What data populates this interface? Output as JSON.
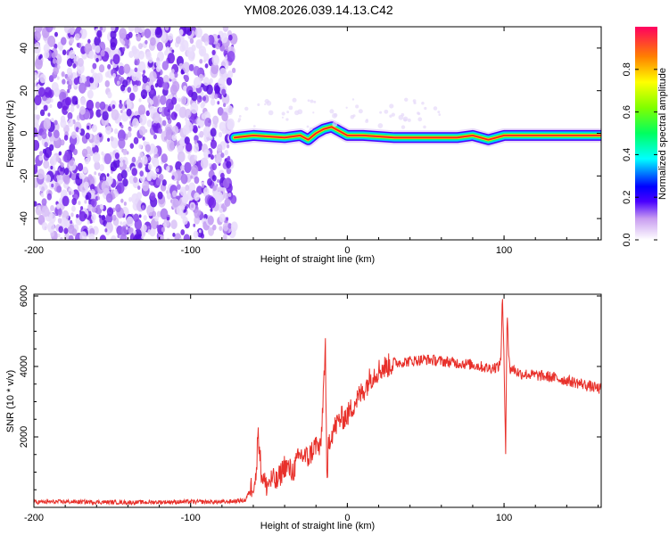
{
  "title": "YM08.2026.039.14.13.C42",
  "chart_data": [
    {
      "type": "heatmap",
      "xlabel": "Height of straight line (km)",
      "ylabel": "Frequency (Hz)",
      "xlim": [
        -200,
        162
      ],
      "ylim": [
        -50,
        50
      ],
      "xticks": [
        -200,
        -100,
        0,
        100
      ],
      "yticks": [
        -40,
        -20,
        0,
        20,
        40
      ],
      "noise_region": {
        "x": [
          -200,
          -72
        ],
        "description_color": "#8a2be2"
      },
      "signal_track": {
        "x": [
          -72,
          -60,
          -50,
          -40,
          -30,
          -25,
          -20,
          -15,
          -10,
          -5,
          0,
          10,
          30,
          50,
          70,
          80,
          85,
          90,
          100,
          130,
          162
        ],
        "y": [
          -2,
          -1,
          -1.5,
          -2,
          -1,
          -3,
          0,
          2,
          3,
          1,
          -1,
          -1,
          -2,
          -2,
          -2,
          -1,
          -2,
          -3,
          -1,
          -1,
          -1
        ]
      },
      "colorbar": {
        "label": "Normalized spectral amplitude",
        "range": [
          0,
          1
        ],
        "ticks": [
          0.0,
          0.2,
          0.4,
          0.6,
          0.8
        ],
        "tick_labels": [
          "0.0",
          "0.2",
          "0.4",
          "0.6",
          "0.8"
        ]
      }
    },
    {
      "type": "line",
      "xlabel": "Height of straight line (km)",
      "ylabel": "SNR (10 * v/v)",
      "xlim": [
        -200,
        162
      ],
      "ylim": [
        0,
        6050
      ],
      "xticks": [
        -200,
        -100,
        0,
        100
      ],
      "yticks": [
        2000,
        4000,
        6000
      ],
      "color": "#e8302a",
      "series": [
        {
          "name": "SNR",
          "x": [
            -200,
            -180,
            -160,
            -140,
            -120,
            -100,
            -80,
            -65,
            -58,
            -57,
            -55,
            -52,
            -48,
            -45,
            -40,
            -35,
            -30,
            -25,
            -20,
            -17,
            -14,
            -13,
            -12,
            -10,
            -5,
            0,
            5,
            10,
            15,
            20,
            25,
            30,
            40,
            50,
            60,
            70,
            80,
            90,
            97,
            98,
            99,
            100,
            101,
            102,
            103,
            104,
            105,
            110,
            120,
            130,
            140,
            150,
            162
          ],
          "y": [
            150,
            160,
            150,
            140,
            150,
            160,
            150,
            200,
            900,
            2300,
            1000,
            600,
            800,
            700,
            1200,
            1000,
            1500,
            1400,
            1800,
            1600,
            4600,
            300,
            1900,
            2100,
            2500,
            2600,
            3000,
            3300,
            3700,
            3900,
            4000,
            4100,
            4150,
            4200,
            4150,
            4100,
            4050,
            3950,
            4000,
            4300,
            6000,
            4100,
            1600,
            5700,
            4200,
            3900,
            3950,
            3800,
            3750,
            3700,
            3600,
            3500,
            3350
          ]
        }
      ]
    }
  ]
}
